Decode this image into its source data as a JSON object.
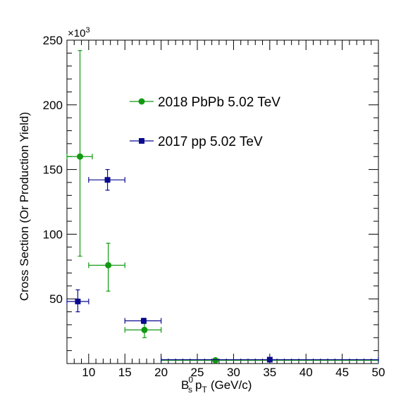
{
  "chart_data": {
    "type": "scatter",
    "title": "",
    "xlabel": {
      "base": "B",
      "sup": "0",
      "sub": "s",
      "middle": "p",
      "sub2": "T",
      "units": "(GeV/c)"
    },
    "ylabel": "Cross Section (Or Production Yield)",
    "y_multiplier_label": {
      "base": "×10",
      "exp": "3"
    },
    "xlim": [
      7,
      50
    ],
    "ylim": [
      0,
      250
    ],
    "x_ticks": [
      10,
      15,
      20,
      25,
      30,
      35,
      40,
      45,
      50
    ],
    "x_tick_labels": [
      "10",
      "15",
      "20",
      "25",
      "30",
      "35",
      "40",
      "45",
      "50"
    ],
    "y_ticks": [
      50,
      100,
      150,
      200,
      250
    ],
    "y_tick_labels": [
      "50",
      "100",
      "150",
      "200",
      "250"
    ],
    "grid": false,
    "legend_position": "top-center",
    "series": [
      {
        "name": "2018 PbPb 5.02 TeV",
        "color": "#119911",
        "marker": "circle",
        "points": [
          {
            "x": 8.8,
            "xerr": [
              7.0,
              10.5
            ],
            "y": 160,
            "yerr": [
              83,
              242
            ]
          },
          {
            "x": 12.7,
            "xerr": [
              10.0,
              15.0
            ],
            "y": 76,
            "yerr": [
              56,
              93
            ]
          },
          {
            "x": 17.7,
            "xerr": [
              15.0,
              20.0
            ],
            "y": 26,
            "yerr": [
              20,
              31
            ]
          },
          {
            "x": 27.5,
            "xerr": [
              20.0,
              50.0
            ],
            "y": 2.5,
            "yerr": [
              1.5,
              3.5
            ]
          }
        ]
      },
      {
        "name": "2017 pp 5.02 TeV",
        "color": "#0a0a8f",
        "marker": "square",
        "points": [
          {
            "x": 8.5,
            "xerr": [
              7.0,
              10.0
            ],
            "y": 48,
            "yerr": [
              40,
              57
            ]
          },
          {
            "x": 12.6,
            "xerr": [
              10.0,
              15.0
            ],
            "y": 142,
            "yerr": [
              134,
              150
            ]
          },
          {
            "x": 17.6,
            "xerr": [
              15.0,
              20.0
            ],
            "y": 33,
            "yerr": [
              31,
              35
            ]
          },
          {
            "x": 35.0,
            "xerr": [
              20.0,
              50.0
            ],
            "y": 3,
            "yerr": [
              2,
              4
            ]
          }
        ]
      }
    ]
  }
}
